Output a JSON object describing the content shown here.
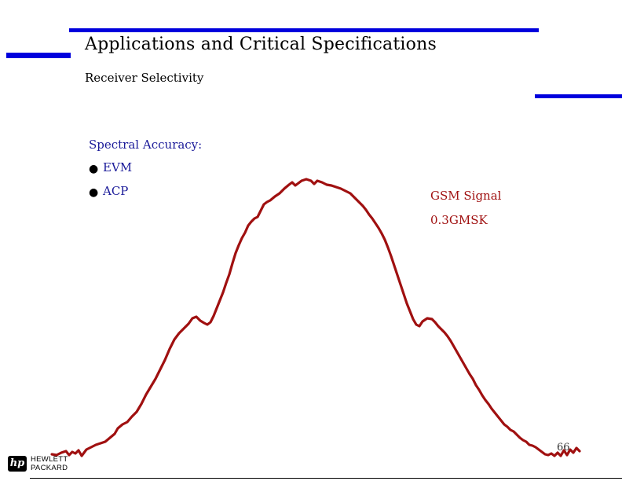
{
  "slide": {
    "title": "Applications and Critical Specifications",
    "subtitle": "Receiver Selectivity",
    "page_number": "66"
  },
  "content": {
    "heading": "Spectral Accuracy:",
    "bullets": [
      "EVM",
      "ACP"
    ],
    "bullet_glyph": "●"
  },
  "annotation": {
    "line1": "GSM Signal",
    "line2": "0.3GMSK"
  },
  "logo": {
    "mark": "hp",
    "line1": "HEWLETT",
    "line2": "PACKARD"
  },
  "colors": {
    "accent_bar": "#0000dd",
    "trace": "#a01010",
    "body_text": "#1a1a99"
  }
}
